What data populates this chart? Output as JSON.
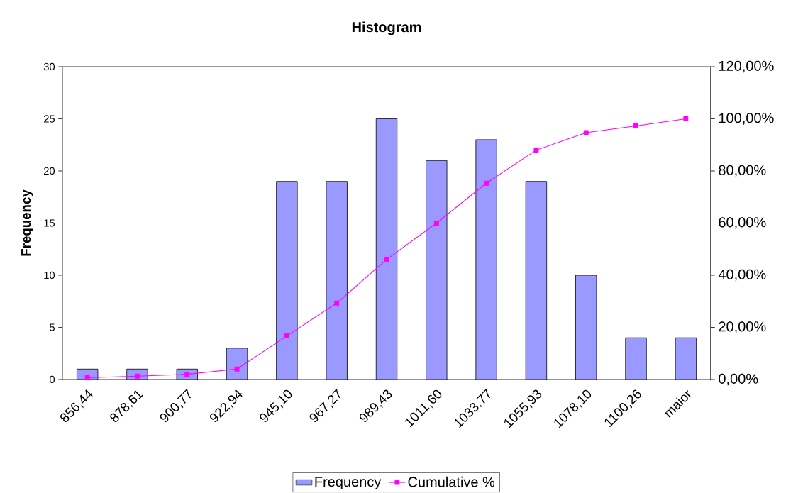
{
  "chart_data": {
    "type": "bar",
    "title": "Histogram",
    "ylabel": "Frequency",
    "categories": [
      "856,44",
      "878,61",
      "900,77",
      "922,94",
      "945,10",
      "967,27",
      "989,43",
      "1011,60",
      "1033,77",
      "1055,93",
      "1078,10",
      "1100,26",
      "maior"
    ],
    "ylim": [
      0,
      30
    ],
    "yticks": [
      0,
      5,
      10,
      15,
      20,
      25,
      30
    ],
    "y2lim": [
      0,
      120
    ],
    "y2ticks": [
      {
        "value": 0,
        "label": "0,00%"
      },
      {
        "value": 20,
        "label": "20,00%"
      },
      {
        "value": 40,
        "label": "40,00%"
      },
      {
        "value": 60,
        "label": "60,00%"
      },
      {
        "value": 80,
        "label": "80,00%"
      },
      {
        "value": 100,
        "label": "100,00%"
      },
      {
        "value": 120,
        "label": "120,00%"
      }
    ],
    "legend": "bottom",
    "series": [
      {
        "name": "Frequency",
        "color": "#9999ff",
        "values": [
          1,
          1,
          1,
          3,
          19,
          19,
          25,
          21,
          23,
          19,
          10,
          4,
          4
        ]
      },
      {
        "name": "Cumulative %",
        "type": "line",
        "axis": "y2",
        "marker": "square",
        "color": "#ff00ff",
        "values": [
          0.7,
          1.3,
          2,
          4,
          16.7,
          29.3,
          46,
          60,
          75.3,
          88,
          94.7,
          97.3,
          100
        ]
      }
    ]
  }
}
